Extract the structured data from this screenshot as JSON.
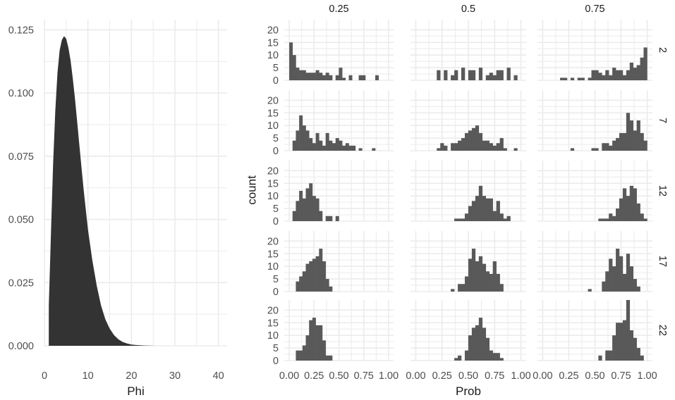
{
  "chart_data": [
    {
      "type": "area",
      "title": "",
      "xlabel": "Phi",
      "ylabel": "",
      "xlim": [
        0,
        42
      ],
      "ylim": [
        0,
        0.129
      ],
      "xticks": [
        "0",
        "10",
        "20",
        "30",
        "40"
      ],
      "yticks": [
        "0.000",
        "0.025",
        "0.050",
        "0.075",
        "0.100",
        "0.125"
      ],
      "grid": true,
      "fill_color": "#333333",
      "x": [
        1,
        1.5,
        2,
        2.5,
        3,
        3.5,
        4,
        4.5,
        5,
        5.5,
        6,
        6.5,
        7,
        7.5,
        8,
        8.5,
        9,
        9.5,
        10,
        11,
        12,
        13,
        14,
        15,
        16,
        17,
        18,
        19,
        20,
        21,
        22,
        23,
        24,
        25.5
      ],
      "y": [
        0.016,
        0.045,
        0.072,
        0.093,
        0.108,
        0.117,
        0.121,
        0.1225,
        0.1215,
        0.118,
        0.113,
        0.106,
        0.098,
        0.089,
        0.08,
        0.071,
        0.062,
        0.054,
        0.046,
        0.034,
        0.024,
        0.016,
        0.0105,
        0.0068,
        0.0042,
        0.0026,
        0.0015,
        0.0009,
        0.0005,
        0.0003,
        0.0002,
        0.0001,
        5e-05,
        0
      ]
    },
    {
      "type": "bar",
      "subtype": "faceted-histogram",
      "xlabel": "Prob",
      "ylabel": "count",
      "xlim": [
        -0.05,
        1.05
      ],
      "ylim": [
        0,
        24
      ],
      "xticks": [
        "0.00",
        "0.25",
        "0.50",
        "0.75",
        "1.00"
      ],
      "yticks": [
        "0",
        "5",
        "10",
        "15",
        "20"
      ],
      "grid": true,
      "bar_color": "#595959",
      "strip_color": "#1a1a1a",
      "column_strips": [
        "0.25",
        "0.5",
        "0.75"
      ],
      "row_strips": [
        "2",
        "7",
        "12",
        "17",
        "22"
      ],
      "bin_width": 0.0333,
      "bin_start": 0.0,
      "panels": [
        [
          [
            15,
            10,
            5,
            4,
            4,
            3,
            3,
            3,
            4,
            3,
            2,
            3,
            2,
            0,
            2,
            5,
            1,
            0,
            2,
            0,
            0,
            2,
            2,
            0,
            0,
            0,
            2,
            0,
            0,
            0
          ],
          [
            0,
            0,
            0,
            0,
            0,
            0,
            4,
            0,
            4,
            0,
            2,
            4,
            0,
            5,
            0,
            4,
            4,
            0,
            5,
            0,
            2,
            3,
            2,
            4,
            4,
            0,
            5,
            0,
            2,
            0
          ],
          [
            0,
            0,
            0,
            0,
            0,
            1,
            1,
            0,
            1,
            0,
            1,
            1,
            0,
            1,
            4,
            4,
            3,
            2,
            4,
            2,
            5,
            4,
            4,
            2,
            4,
            7,
            5,
            6,
            9,
            13
          ]
        ],
        [
          [
            0,
            4,
            8,
            14,
            10,
            8,
            5,
            3,
            7,
            4,
            2,
            7,
            4,
            3,
            5,
            4,
            2,
            3,
            2,
            2,
            0,
            1,
            0,
            0,
            0,
            1,
            0,
            0,
            0,
            0
          ],
          [
            0,
            0,
            0,
            0,
            0,
            0,
            1,
            3,
            2,
            0,
            3,
            3,
            4,
            5,
            7,
            8,
            9,
            10,
            7,
            4,
            4,
            3,
            2,
            3,
            5,
            1,
            0,
            0,
            1,
            0
          ],
          [
            0,
            0,
            0,
            0,
            0,
            0,
            0,
            0,
            1,
            0,
            0,
            0,
            0,
            0,
            1,
            1,
            0,
            3,
            3,
            2,
            4,
            5,
            7,
            7,
            15,
            12,
            8,
            12,
            7,
            4
          ]
        ],
        [
          [
            0,
            4,
            8,
            12,
            9,
            13,
            15,
            10,
            9,
            4,
            0,
            2,
            2,
            0,
            2,
            0,
            0,
            0,
            0,
            0,
            0,
            0,
            0,
            0,
            0,
            0,
            0,
            0,
            0,
            0
          ],
          [
            0,
            0,
            0,
            0,
            0,
            0,
            0,
            0,
            0,
            0,
            0,
            1,
            1,
            1,
            3,
            6,
            8,
            10,
            14,
            10,
            9,
            9,
            4,
            8,
            3,
            1,
            2,
            0,
            0,
            0
          ],
          [
            0,
            0,
            0,
            0,
            0,
            0,
            0,
            0,
            0,
            0,
            0,
            0,
            0,
            0,
            0,
            0,
            1,
            1,
            1,
            3,
            2,
            5,
            9,
            13,
            10,
            14,
            13,
            7,
            3,
            1
          ]
        ],
        [
          [
            0,
            0,
            4,
            6,
            8,
            11,
            12,
            13,
            14,
            17,
            12,
            5,
            2,
            0,
            0,
            0,
            0,
            0,
            0,
            0,
            0,
            0,
            0,
            0,
            0,
            0,
            0,
            0,
            0,
            0
          ],
          [
            0,
            0,
            0,
            0,
            0,
            0,
            0,
            0,
            0,
            0,
            1,
            0,
            3,
            3,
            6,
            13,
            17,
            12,
            14,
            11,
            8,
            7,
            12,
            7,
            3,
            0,
            0,
            0,
            0,
            0
          ],
          [
            0,
            0,
            0,
            0,
            0,
            0,
            0,
            0,
            0,
            0,
            0,
            0,
            0,
            1,
            0,
            0,
            0,
            4,
            8,
            13,
            10,
            17,
            14,
            7,
            15,
            10,
            5,
            2,
            0,
            0
          ]
        ],
        [
          [
            0,
            0,
            4,
            4,
            6,
            10,
            16,
            17,
            14,
            14,
            8,
            2,
            2,
            0,
            0,
            0,
            0,
            0,
            0,
            0,
            0,
            0,
            0,
            0,
            0,
            0,
            0,
            0,
            0,
            0
          ],
          [
            0,
            0,
            0,
            0,
            0,
            0,
            0,
            0,
            0,
            0,
            0,
            1,
            2,
            0,
            4,
            10,
            13,
            14,
            17,
            13,
            9,
            4,
            3,
            3,
            1,
            0,
            0,
            0,
            0,
            0
          ],
          [
            0,
            0,
            0,
            0,
            0,
            0,
            0,
            0,
            0,
            0,
            0,
            0,
            0,
            0,
            0,
            0,
            2,
            0,
            4,
            4,
            10,
            15,
            15,
            16,
            24,
            12,
            9,
            5,
            2,
            0
          ]
        ]
      ]
    }
  ]
}
